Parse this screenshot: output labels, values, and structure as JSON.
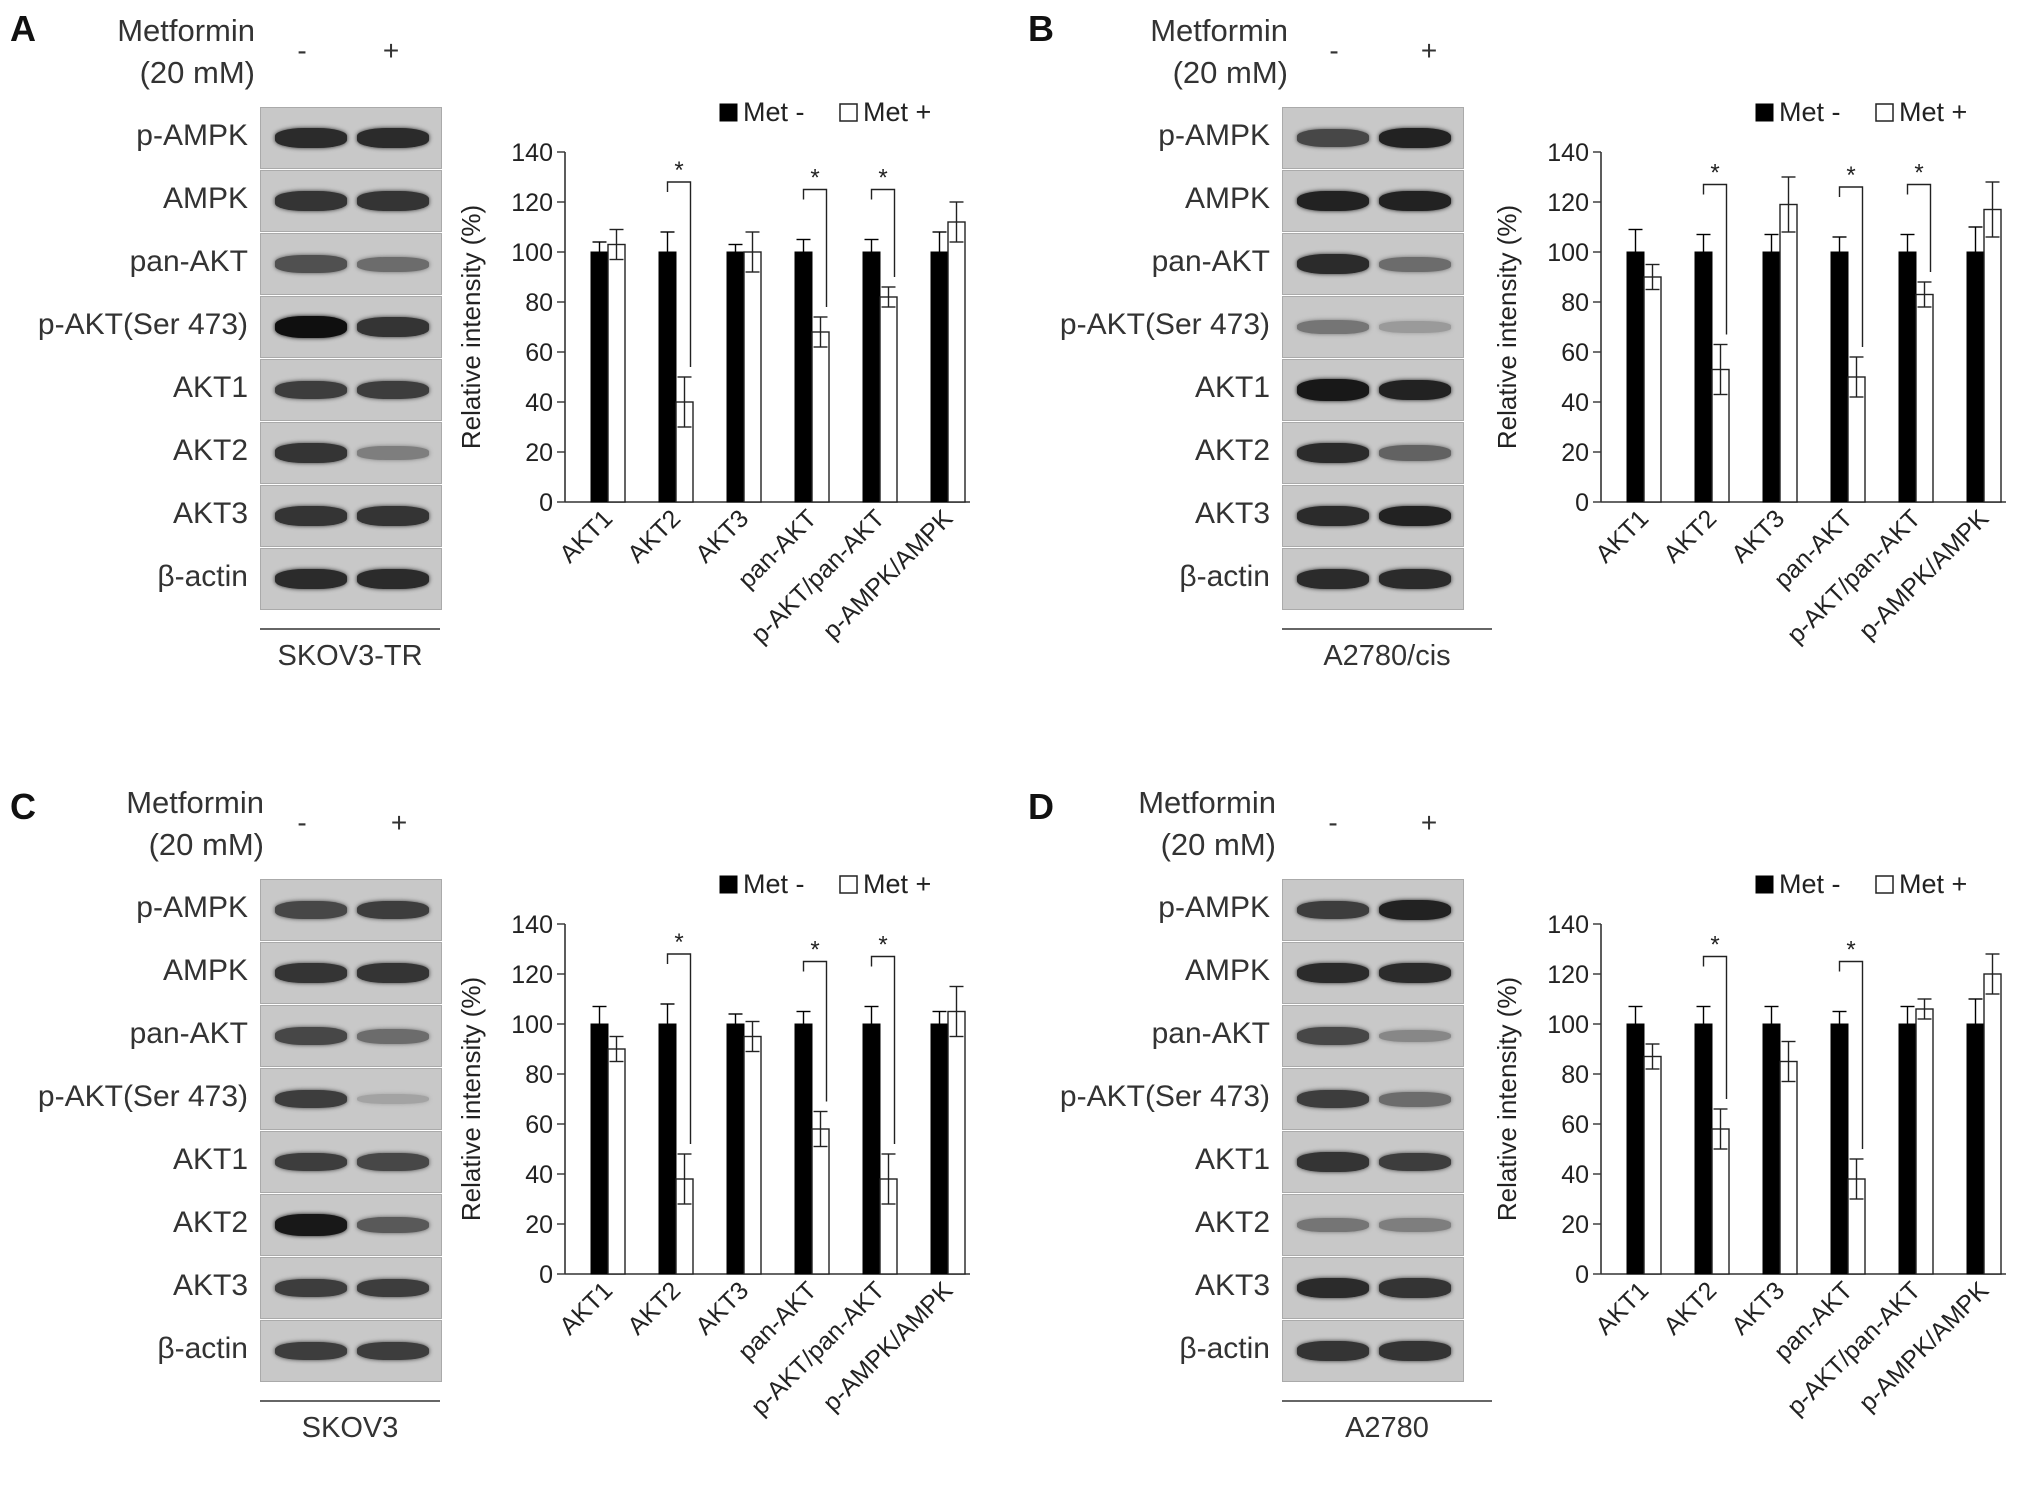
{
  "treatment": {
    "name_line1": "Metformin",
    "name_line2": "(20 mM)",
    "minus": "-",
    "plus": "+"
  },
  "band_labels": [
    "p-AMPK",
    "AMPK",
    "pan-AKT",
    "p-AKT(Ser 473)",
    "AKT1",
    "AKT2",
    "AKT3",
    "β-actin"
  ],
  "panels": [
    {
      "letter": "A",
      "cell_line": "SKOV3-TR",
      "bands": [
        [
          0.85,
          0.85
        ],
        [
          0.8,
          0.8
        ],
        [
          0.65,
          0.5
        ],
        [
          1.0,
          0.8
        ],
        [
          0.75,
          0.75
        ],
        [
          0.8,
          0.4
        ],
        [
          0.8,
          0.8
        ],
        [
          0.85,
          0.85
        ]
      ]
    },
    {
      "letter": "B",
      "cell_line": "A2780/cis",
      "bands": [
        [
          0.7,
          0.9
        ],
        [
          0.9,
          0.9
        ],
        [
          0.85,
          0.5
        ],
        [
          0.45,
          0.25
        ],
        [
          0.95,
          0.9
        ],
        [
          0.85,
          0.55
        ],
        [
          0.85,
          0.9
        ],
        [
          0.85,
          0.85
        ]
      ]
    },
    {
      "letter": "C",
      "cell_line": "SKOV3",
      "bands": [
        [
          0.7,
          0.75
        ],
        [
          0.8,
          0.8
        ],
        [
          0.7,
          0.5
        ],
        [
          0.75,
          0.2
        ],
        [
          0.75,
          0.7
        ],
        [
          0.95,
          0.6
        ],
        [
          0.75,
          0.75
        ],
        [
          0.75,
          0.75
        ]
      ]
    },
    {
      "letter": "D",
      "cell_line": "A2780",
      "bands": [
        [
          0.75,
          0.9
        ],
        [
          0.85,
          0.85
        ],
        [
          0.7,
          0.35
        ],
        [
          0.75,
          0.5
        ],
        [
          0.8,
          0.75
        ],
        [
          0.45,
          0.4
        ],
        [
          0.85,
          0.8
        ],
        [
          0.8,
          0.8
        ]
      ]
    }
  ],
  "chart_data": [
    {
      "type": "bar",
      "panel": "A",
      "categories": [
        "AKT1",
        "AKT2",
        "AKT3",
        "pan-AKT",
        "p-AKT/pan-AKT",
        "p-AMPK/AMPK"
      ],
      "ylabel": "Relative intensity (%)",
      "ylim": [
        0,
        140
      ],
      "yticks": [
        "0",
        "20",
        "40",
        "60",
        "80",
        "100",
        "120",
        "140"
      ],
      "legend": [
        "Met -",
        "Met +"
      ],
      "series": [
        {
          "name": "Met -",
          "values": [
            100,
            100,
            100,
            100,
            100,
            100
          ],
          "errors": [
            4,
            8,
            3,
            5,
            5,
            8
          ]
        },
        {
          "name": "Met +",
          "values": [
            103,
            40,
            100,
            68,
            82,
            112
          ],
          "errors": [
            6,
            10,
            8,
            6,
            4,
            8
          ]
        }
      ],
      "significance": [
        1,
        3,
        4
      ],
      "sig_mark": "*"
    },
    {
      "type": "bar",
      "panel": "B",
      "categories": [
        "AKT1",
        "AKT2",
        "AKT3",
        "pan-AKT",
        "p-AKT/pan-AKT",
        "p-AMPK/AMPK"
      ],
      "ylabel": "Relative intensity (%)",
      "ylim": [
        0,
        140
      ],
      "yticks": [
        "0",
        "20",
        "40",
        "60",
        "80",
        "100",
        "120",
        "140"
      ],
      "legend": [
        "Met -",
        "Met +"
      ],
      "series": [
        {
          "name": "Met -",
          "values": [
            100,
            100,
            100,
            100,
            100,
            100
          ],
          "errors": [
            9,
            7,
            7,
            6,
            7,
            10
          ]
        },
        {
          "name": "Met +",
          "values": [
            90,
            53,
            119,
            50,
            83,
            117
          ],
          "errors": [
            5,
            10,
            11,
            8,
            5,
            11
          ]
        }
      ],
      "significance": [
        1,
        3,
        4
      ],
      "sig_mark": "*"
    },
    {
      "type": "bar",
      "panel": "C",
      "categories": [
        "AKT1",
        "AKT2",
        "AKT3",
        "pan-AKT",
        "p-AKT/pan-AKT",
        "p-AMPK/AMPK"
      ],
      "ylabel": "Relative intensity (%)",
      "ylim": [
        0,
        140
      ],
      "yticks": [
        "0",
        "20",
        "40",
        "60",
        "80",
        "100",
        "120",
        "140"
      ],
      "legend": [
        "Met -",
        "Met +"
      ],
      "series": [
        {
          "name": "Met -",
          "values": [
            100,
            100,
            100,
            100,
            100,
            100
          ],
          "errors": [
            7,
            8,
            4,
            5,
            7,
            5
          ]
        },
        {
          "name": "Met +",
          "values": [
            90,
            38,
            95,
            58,
            38,
            105
          ],
          "errors": [
            5,
            10,
            6,
            7,
            10,
            10
          ]
        }
      ],
      "significance": [
        1,
        3,
        4
      ],
      "sig_mark": "*"
    },
    {
      "type": "bar",
      "panel": "D",
      "categories": [
        "AKT1",
        "AKT2",
        "AKT3",
        "pan-AKT",
        "p-AKT/pan-AKT",
        "p-AMPK/AMPK"
      ],
      "ylabel": "Relative intensity (%)",
      "ylim": [
        0,
        140
      ],
      "yticks": [
        "0",
        "20",
        "40",
        "60",
        "80",
        "100",
        "120",
        "140"
      ],
      "legend": [
        "Met -",
        "Met +"
      ],
      "series": [
        {
          "name": "Met -",
          "values": [
            100,
            100,
            100,
            100,
            100,
            100
          ],
          "errors": [
            7,
            7,
            7,
            5,
            7,
            10
          ]
        },
        {
          "name": "Met +",
          "values": [
            87,
            58,
            85,
            38,
            106,
            120
          ],
          "errors": [
            5,
            8,
            8,
            8,
            4,
            8
          ]
        }
      ],
      "significance": [
        1,
        3
      ],
      "sig_mark": "*"
    }
  ]
}
